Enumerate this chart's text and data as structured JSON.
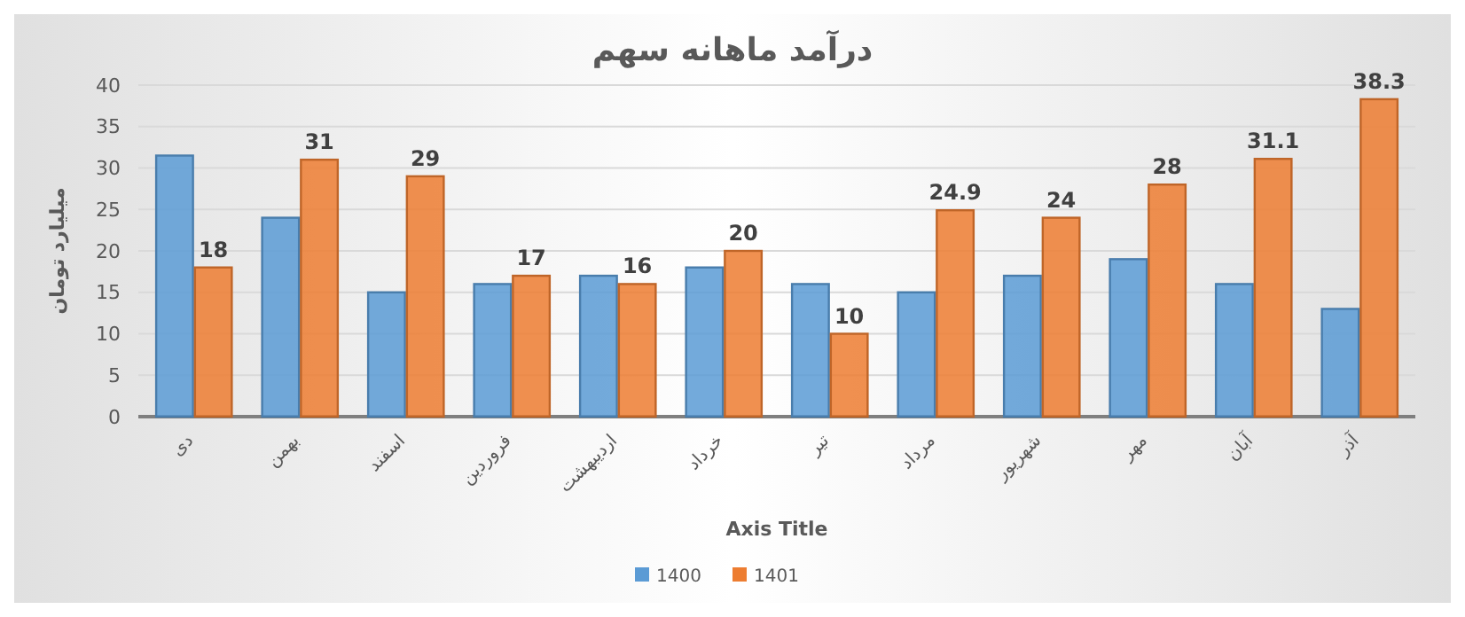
{
  "chart_data": {
    "type": "bar",
    "title": "درآمد ماهانه سهم",
    "categories": [
      "دی",
      "بهمن",
      "اسفند",
      "فروردین",
      "اردیبهشت",
      "خرداد",
      "تیر",
      "مرداد",
      "شهریور",
      "مهر",
      "آبان",
      "آذر"
    ],
    "series": [
      {
        "name": "1400",
        "color": "#5b9bd5",
        "values": [
          31.5,
          24,
          15,
          16,
          17,
          18,
          16,
          15,
          17,
          19,
          16,
          13
        ]
      },
      {
        "name": "1401",
        "color": "#ed7d31",
        "values": [
          18,
          31,
          29,
          17,
          16,
          20,
          10,
          24.9,
          24,
          28,
          31.1,
          38.3
        ],
        "value_labels": [
          "18",
          "31",
          "29",
          "17",
          "16",
          "20",
          "10",
          "24.9",
          "24",
          "28",
          "31.1",
          "38.3"
        ]
      }
    ],
    "xlabel": "Axis Title",
    "ylabel": "میلیارد تومان",
    "ylim": [
      0,
      40
    ],
    "yticks": [
      0,
      5,
      10,
      15,
      20,
      25,
      30,
      35,
      40
    ],
    "grid": "y",
    "legend": "bottom"
  }
}
